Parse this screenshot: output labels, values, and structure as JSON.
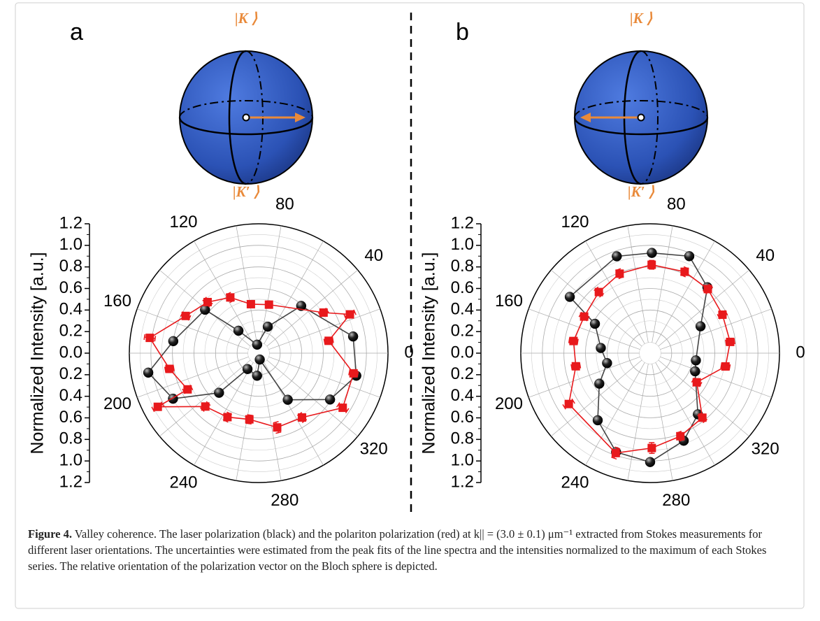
{
  "panels": [
    {
      "label": "a",
      "sphere_top": "|K ⟩",
      "sphere_bottom": "|K′ ⟩"
    },
    {
      "label": "b",
      "sphere_top": "|K ⟩",
      "sphere_bottom": "|K′ ⟩"
    }
  ],
  "chart_data": [
    {
      "type": "polar",
      "ylabel": "Normalized Intensity [a.u.]",
      "xlim": [
        0,
        360
      ],
      "xticks": [
        0,
        40,
        80,
        120,
        160,
        200,
        240,
        280,
        320
      ],
      "ylim": [
        0,
        1.2
      ],
      "yticks": [
        {
          "value": 0,
          "label": "0.0"
        },
        0.2,
        0.4,
        0.6,
        0.8,
        {
          "value": 1,
          "label": "1.0"
        },
        1.2
      ],
      "grid": true,
      "series": [
        {
          "color": "#000000",
          "marker": "sphere",
          "theta": [
            10,
            48,
            71,
            100,
            132,
            141,
            172,
            190,
            208,
            225,
            235,
            266,
            280,
            302,
            327,
            347
          ],
          "values": [
            0.89,
            0.59,
            0.26,
            0.08,
            0.28,
            0.64,
            0.8,
            1.04,
            0.9,
            0.52,
            0.18,
            0.21,
            0.06,
            0.51,
            0.79,
            0.93
          ]
        },
        {
          "color": "#e8191c",
          "marker": "square",
          "theta": [
            10,
            23,
            32,
            78,
            99,
            117,
            135,
            153,
            172,
            190,
            207,
            208,
            225,
            244,
            262,
            284,
            304,
            327,
            348
          ],
          "values": [
            0.66,
            0.92,
            0.71,
            0.46,
            0.46,
            0.58,
            0.67,
            0.76,
            1.02,
            0.84,
            0.74,
            1.06,
            0.7,
            0.66,
            0.62,
            0.71,
            0.72,
            0.93,
            0.9
          ],
          "errors": [
            0.04,
            0.05,
            0.04,
            0.03,
            0.03,
            0.04,
            0.04,
            0.04,
            0.05,
            0.04,
            0.04,
            0.05,
            0.04,
            0.04,
            0.04,
            0.05,
            0.04,
            0.05,
            0.04
          ]
        }
      ]
    },
    {
      "type": "polar",
      "ylabel": "Normalized Intensity [a.u.]",
      "xlim": [
        0,
        360
      ],
      "xticks": [
        0,
        40,
        80,
        120,
        160,
        200,
        240,
        280,
        320
      ],
      "ylim": [
        0,
        1.2
      ],
      "yticks": [
        {
          "value": 0,
          "label": "0.0"
        },
        0.2,
        0.4,
        0.6,
        0.8,
        {
          "value": 1,
          "label": "1.0"
        },
        1.2
      ],
      "grid": true,
      "series": [
        {
          "color": "#000000",
          "marker": "sphere",
          "theta": [
            28,
            49,
            68,
            89,
            109,
            145,
            152,
            174,
            193,
            211,
            232,
            251,
            270,
            291,
            308,
            338,
            351
          ],
          "values": [
            0.53,
            0.81,
            0.97,
            0.93,
            0.95,
            0.91,
            0.58,
            0.46,
            0.41,
            0.55,
            0.79,
            0.97,
            1.01,
            0.87,
            0.72,
            0.45,
            0.43
          ]
        },
        {
          "color": "#e8191c",
          "marker": "square",
          "theta": [
            8,
            28,
            48,
            67,
            89,
            111,
            130,
            151,
            171,
            190,
            212,
            251,
            271,
            290,
            309,
            328,
            350
          ],
          "values": [
            0.75,
            0.76,
            0.8,
            0.82,
            0.82,
            0.79,
            0.74,
            0.7,
            0.72,
            0.7,
            0.89,
            0.98,
            0.88,
            0.82,
            0.77,
            0.51,
            0.71
          ],
          "errors": [
            0.04,
            0.04,
            0.04,
            0.04,
            0.04,
            0.04,
            0.04,
            0.04,
            0.04,
            0.04,
            0.05,
            0.05,
            0.05,
            0.04,
            0.04,
            0.04,
            0.04
          ]
        }
      ]
    }
  ],
  "caption": {
    "label": "Figure 4.",
    "text": "Valley coherence. The laser polarization (black) and the polariton polarization (red) at k|| = (3.0 ± 0.1) μm⁻¹ extracted from Stokes measurements for different laser orientations. The uncertainties were estimated from the peak fits of the line spectra and the intensities normalized to the maximum of each Stokes series. The relative orientation of the polarization vector on the Bloch sphere is depicted."
  }
}
